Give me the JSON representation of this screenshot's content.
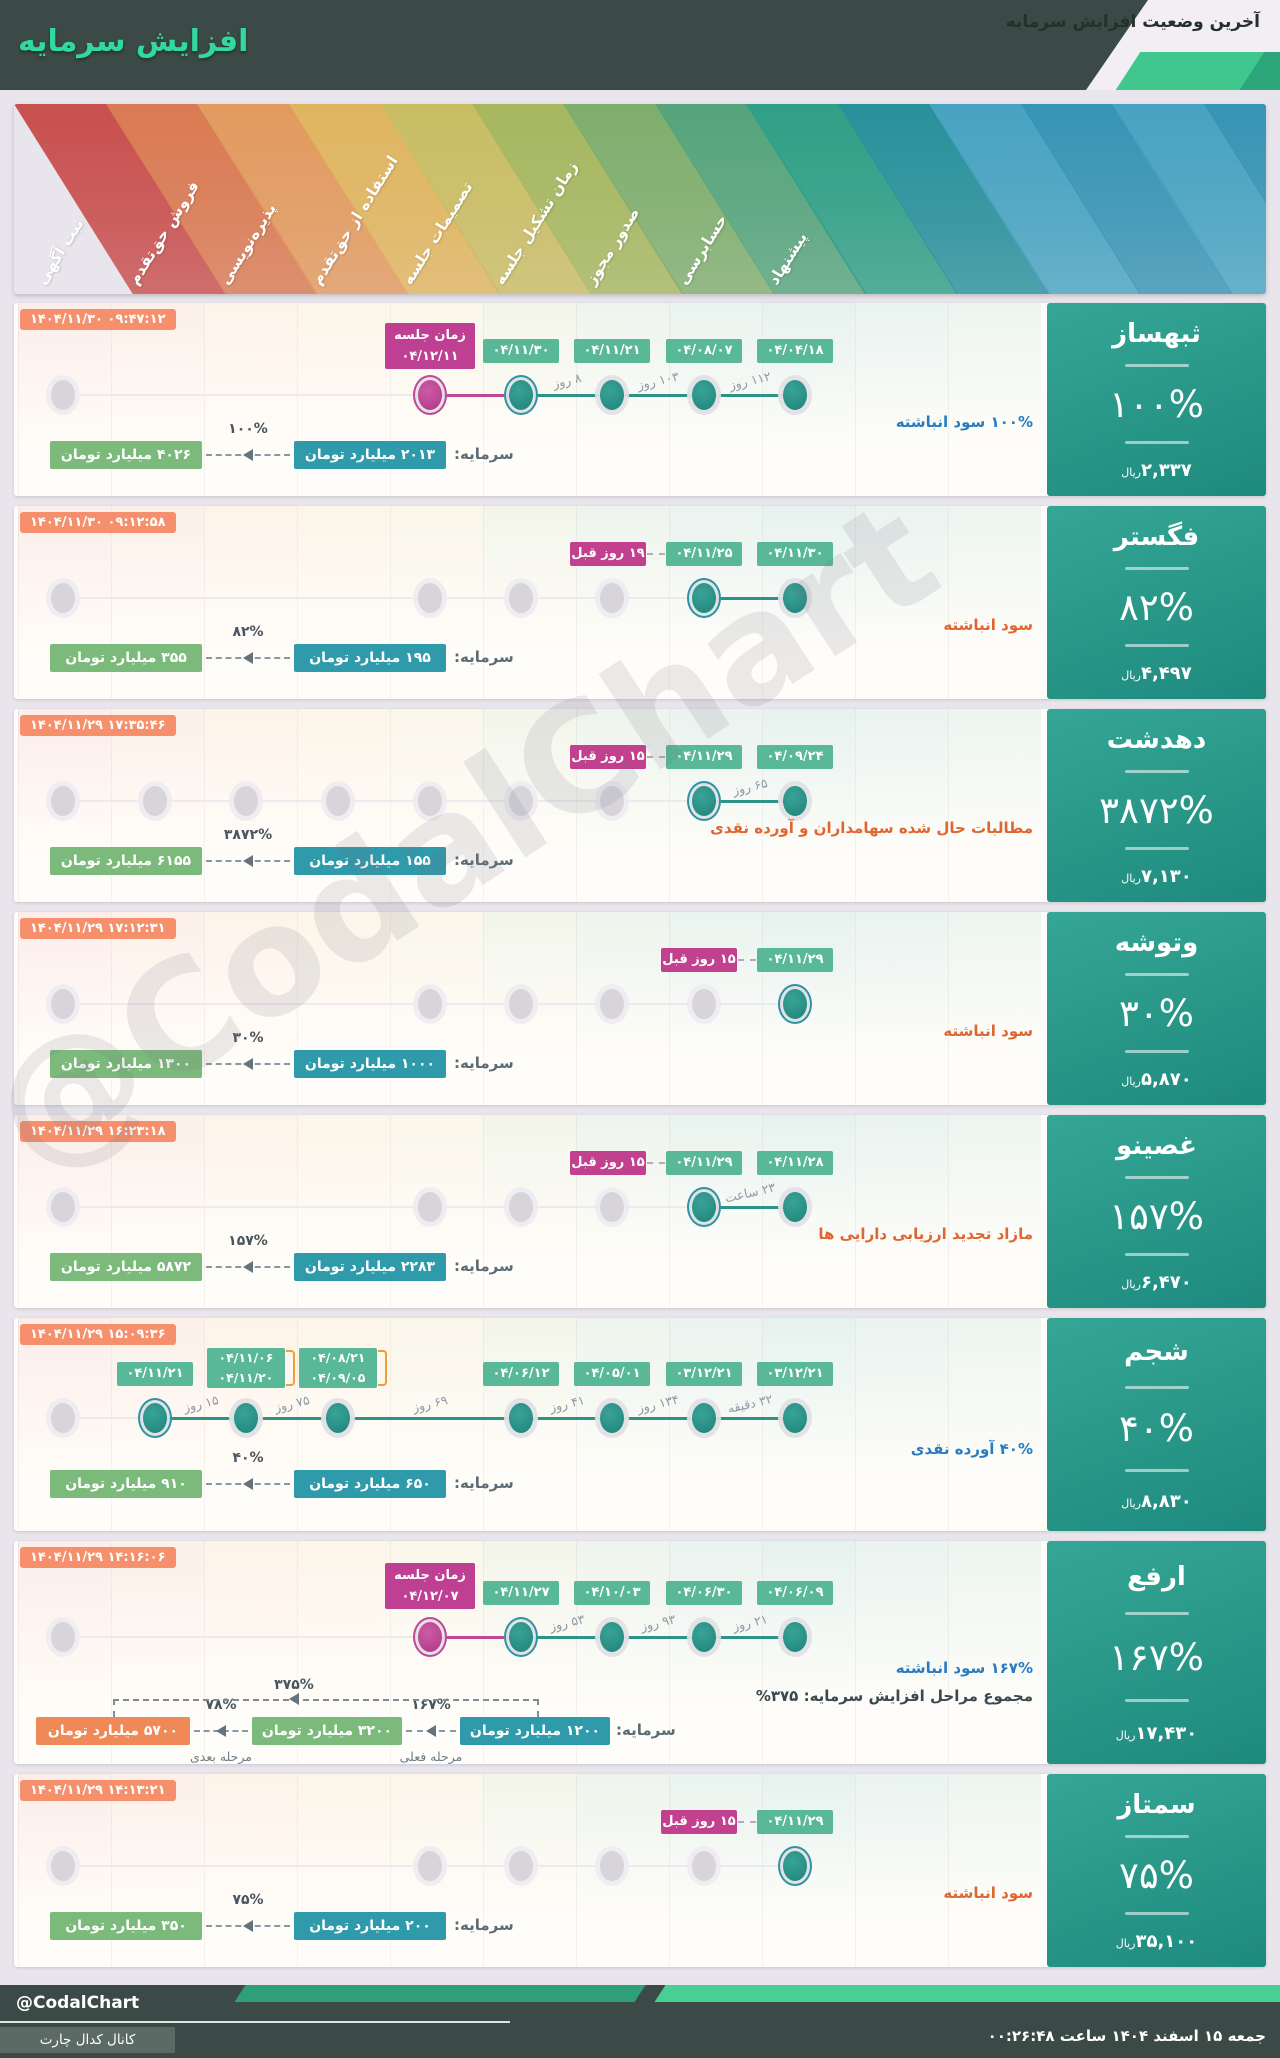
{
  "header": {
    "title": "افزایش سرمایه",
    "subtitle": "آخرین وضعیت افزایش سرمایه"
  },
  "banner": {
    "stages": [
      "ثبت آگهی",
      "فروش حق‌تقدم",
      "پذیره‌نویسی",
      "استفاده از حق‌تقدم",
      "تصمیمات جلسه",
      "زمان تشکیل جلسه",
      "صدور مجوز",
      "حسابرسی",
      "پیشنهاد"
    ],
    "stage_colors": [
      "#c8504e",
      "#d97a52",
      "#e29a5e",
      "#e0b55f",
      "#c9bd63",
      "#a6b75f",
      "#7fae6d",
      "#55a47b",
      "#2f9f86",
      "#28909b",
      "#47a3c1",
      "#3794b4",
      "#47a3c1",
      "#3794b4"
    ]
  },
  "colors": {
    "accent_teal": "#2f9f86",
    "badge_teal": "#58b898",
    "badge_magenta": "#bf3f92",
    "badge_orange_ts": "#f6906c",
    "chain_teal": "#2f9aaa",
    "chain_green": "#7cba7c",
    "chain_orange": "#ef8a58",
    "note_blue": "#2a7cc0",
    "note_orange": "#e0662f",
    "card_gradient": "#35a695",
    "header_dark": "#3b4a46",
    "mint": "#3fc78e"
  },
  "rows": [
    {
      "name": "ثبهساز",
      "pct": "۱۰۰%",
      "price": "۲,۳۳۷",
      "rial": "ریال",
      "timestamp": "۱۴۰۴/۱۱/۳۰ ۰۹:۴۷:۱۲",
      "badges": [
        {
          "col": 5,
          "type": "magenta",
          "lines": [
            "زمان جلسه",
            "۰۴/۱۲/۱۱"
          ]
        },
        {
          "col": 6,
          "text": "۰۴/۱۱/۳۰"
        },
        {
          "col": 7,
          "text": "۰۴/۱۱/۲۱"
        },
        {
          "col": 8,
          "text": "۰۴/۰۸/۰۷"
        },
        {
          "col": 9,
          "text": "۰۴/۰۴/۱۸"
        }
      ],
      "prev": null,
      "dots": [
        {
          "col": 1,
          "kind": "gray"
        },
        {
          "col": 5,
          "kind": "magenta",
          "ring": true
        },
        {
          "col": 6,
          "kind": "teal",
          "ring": true
        },
        {
          "col": 7,
          "kind": "teal"
        },
        {
          "col": 8,
          "kind": "teal"
        },
        {
          "col": 9,
          "kind": "teal"
        }
      ],
      "segments": [
        {
          "from": 5,
          "to": 6,
          "color": "#c14697"
        },
        {
          "from": 6,
          "to": 9,
          "color": "#2e9387"
        }
      ],
      "gaps": [
        {
          "between": [
            6,
            7
          ],
          "text": "۸ روز"
        },
        {
          "between": [
            7,
            8
          ],
          "text": "۱۰۳ روز"
        },
        {
          "between": [
            8,
            9
          ],
          "text": "۱۱۲ روز"
        }
      ],
      "notes": [
        {
          "text": "۱۰۰% سود انباشته",
          "tone": "blue"
        }
      ],
      "chain": {
        "label": "سرمایه:",
        "start": "۲۰۱۳ میلیارد تومان",
        "hops": [
          {
            "pct": "۱۰۰%",
            "text": "۴۰۲۶ میلیارد تومان",
            "tone": "green"
          }
        ]
      }
    },
    {
      "name": "فگستر",
      "pct": "۸۲%",
      "price": "۴,۴۹۷",
      "rial": "ریال",
      "timestamp": "۱۴۰۴/۱۱/۳۰ ۰۹:۱۲:۵۸",
      "badges": [
        {
          "col": 8,
          "text": "۰۴/۱۱/۲۵"
        },
        {
          "col": 9,
          "text": "۰۴/۱۱/۳۰"
        }
      ],
      "prev": {
        "text": "۱۹ روز قبل",
        "col": 8
      },
      "dots": [
        {
          "col": 1,
          "kind": "gray"
        },
        {
          "col": 5,
          "kind": "gray"
        },
        {
          "col": 6,
          "kind": "gray"
        },
        {
          "col": 7,
          "kind": "gray"
        },
        {
          "col": 8,
          "kind": "teal",
          "ring": true
        },
        {
          "col": 9,
          "kind": "teal"
        }
      ],
      "segments": [
        {
          "from": 8,
          "to": 9,
          "color": "#2e9387"
        }
      ],
      "gaps": [],
      "notes": [
        {
          "text": "سود انباشته",
          "tone": "orange"
        }
      ],
      "chain": {
        "label": "سرمایه:",
        "start": "۱۹۵ میلیارد تومان",
        "hops": [
          {
            "pct": "۸۲%",
            "text": "۳۵۵ میلیارد تومان",
            "tone": "green"
          }
        ]
      }
    },
    {
      "name": "دهدشت",
      "pct": "۳۸۷۲%",
      "price": "۷,۱۳۰",
      "rial": "ریال",
      "timestamp": "۱۴۰۴/۱۱/۲۹ ۱۷:۳۵:۴۶",
      "badges": [
        {
          "col": 8,
          "text": "۰۴/۱۱/۲۹"
        },
        {
          "col": 9,
          "text": "۰۴/۰۹/۲۴"
        }
      ],
      "prev": {
        "text": "۱۵ روز قبل",
        "col": 8
      },
      "dots": [
        {
          "col": 1,
          "kind": "gray"
        },
        {
          "col": 2,
          "kind": "gray"
        },
        {
          "col": 3,
          "kind": "gray"
        },
        {
          "col": 4,
          "kind": "gray"
        },
        {
          "col": 5,
          "kind": "gray"
        },
        {
          "col": 6,
          "kind": "gray"
        },
        {
          "col": 7,
          "kind": "gray"
        },
        {
          "col": 8,
          "kind": "teal",
          "ring": true
        },
        {
          "col": 9,
          "kind": "teal"
        }
      ],
      "segments": [
        {
          "from": 8,
          "to": 9,
          "color": "#2e9387"
        }
      ],
      "gaps": [
        {
          "between": [
            8,
            9
          ],
          "text": "۶۵ روز"
        }
      ],
      "notes": [
        {
          "text": "مطالبات حال شده سهامداران و آورده نقدی",
          "tone": "orange"
        }
      ],
      "chain": {
        "label": "سرمایه:",
        "start": "۱۵۵ میلیارد تومان",
        "hops": [
          {
            "pct": "۳۸۷۲%",
            "text": "۶۱۵۵ میلیارد تومان",
            "tone": "green"
          }
        ]
      }
    },
    {
      "name": "وتوشه",
      "pct": "۳۰%",
      "price": "۵,۸۷۰",
      "rial": "ریال",
      "timestamp": "۱۴۰۴/۱۱/۲۹ ۱۷:۱۲:۳۱",
      "badges": [
        {
          "col": 9,
          "text": "۰۴/۱۱/۲۹"
        }
      ],
      "prev": {
        "text": "۱۵ روز قبل",
        "col": 9
      },
      "dots": [
        {
          "col": 1,
          "kind": "gray"
        },
        {
          "col": 5,
          "kind": "gray"
        },
        {
          "col": 6,
          "kind": "gray"
        },
        {
          "col": 7,
          "kind": "gray"
        },
        {
          "col": 8,
          "kind": "gray"
        },
        {
          "col": 9,
          "kind": "teal",
          "ring": true
        }
      ],
      "segments": [],
      "gaps": [],
      "notes": [
        {
          "text": "سود انباشته",
          "tone": "orange"
        }
      ],
      "chain": {
        "label": "سرمایه:",
        "start": "۱۰۰۰ میلیارد تومان",
        "hops": [
          {
            "pct": "۳۰%",
            "text": "۱۳۰۰ میلیارد تومان",
            "tone": "green"
          }
        ]
      }
    },
    {
      "name": "غصینو",
      "pct": "۱۵۷%",
      "price": "۶,۴۷۰",
      "rial": "ریال",
      "timestamp": "۱۴۰۴/۱۱/۲۹ ۱۶:۲۳:۱۸",
      "badges": [
        {
          "col": 8,
          "text": "۰۴/۱۱/۲۹"
        },
        {
          "col": 9,
          "text": "۰۴/۱۱/۲۸"
        }
      ],
      "prev": {
        "text": "۱۵ روز قبل",
        "col": 8
      },
      "dots": [
        {
          "col": 1,
          "kind": "gray"
        },
        {
          "col": 5,
          "kind": "gray"
        },
        {
          "col": 6,
          "kind": "gray"
        },
        {
          "col": 7,
          "kind": "gray"
        },
        {
          "col": 8,
          "kind": "teal",
          "ring": true
        },
        {
          "col": 9,
          "kind": "teal"
        }
      ],
      "segments": [
        {
          "from": 8,
          "to": 9,
          "color": "#2e9387"
        }
      ],
      "gaps": [
        {
          "between": [
            8,
            9
          ],
          "text": "۲۳ ساعت"
        }
      ],
      "notes": [
        {
          "text": "مازاد تجدید ارزیابی دارایی ها",
          "tone": "orange"
        }
      ],
      "chain": {
        "label": "سرمایه:",
        "start": "۲۲۸۳ میلیارد تومان",
        "hops": [
          {
            "pct": "۱۵۷%",
            "text": "۵۸۷۲ میلیارد تومان",
            "tone": "green"
          }
        ]
      }
    },
    {
      "name": "شجم",
      "pct": "۴۰%",
      "price": "۸,۸۳۰",
      "rial": "ریال",
      "timestamp": "۱۴۰۴/۱۱/۲۹ ۱۵:۰۹:۳۶",
      "badges": [
        {
          "col": 2,
          "text": "۰۴/۱۱/۲۱"
        },
        {
          "col": 3,
          "type": "stack",
          "lines": [
            "۰۴/۱۱/۰۶",
            "۰۴/۱۱/۲۰"
          ],
          "bracket": true
        },
        {
          "col": 4,
          "type": "stack",
          "lines": [
            "۰۴/۰۸/۲۱",
            "۰۴/۰۹/۰۵"
          ],
          "bracket": true
        },
        {
          "col": 6,
          "text": "۰۴/۰۶/۱۲"
        },
        {
          "col": 7,
          "text": "۰۴/۰۵/۰۱"
        },
        {
          "col": 8,
          "text": "۰۳/۱۲/۲۱"
        },
        {
          "col": 9,
          "text": "۰۳/۱۲/۲۱"
        }
      ],
      "prev": null,
      "dots": [
        {
          "col": 1,
          "kind": "gray"
        },
        {
          "col": 2,
          "kind": "teal",
          "ring": true
        },
        {
          "col": 3,
          "kind": "teal"
        },
        {
          "col": 4,
          "kind": "teal"
        },
        {
          "col": 6,
          "kind": "teal"
        },
        {
          "col": 7,
          "kind": "teal"
        },
        {
          "col": 8,
          "kind": "teal"
        },
        {
          "col": 9,
          "kind": "teal"
        }
      ],
      "segments": [
        {
          "from": 2,
          "to": 9,
          "color": "#2e9387"
        }
      ],
      "gaps": [
        {
          "between": [
            2,
            3
          ],
          "text": "۱۵ روز"
        },
        {
          "between": [
            3,
            4
          ],
          "text": "۷۵ روز"
        },
        {
          "between": [
            4,
            6
          ],
          "text": "۶۹ روز"
        },
        {
          "between": [
            6,
            7
          ],
          "text": "۴۱ روز"
        },
        {
          "between": [
            7,
            8
          ],
          "text": "۱۳۴ روز"
        },
        {
          "between": [
            8,
            9
          ],
          "text": "۳۲ دقیقه"
        }
      ],
      "notes": [
        {
          "text": "۴۰% آورده نقدی",
          "tone": "blue"
        }
      ],
      "chain": {
        "label": "سرمایه:",
        "start": "۶۵۰ میلیارد تومان",
        "hops": [
          {
            "pct": "۴۰%",
            "text": "۹۱۰ میلیارد تومان",
            "tone": "green"
          }
        ]
      }
    },
    {
      "name": "ارفع",
      "pct": "۱۶۷%",
      "price": "۱۷,۴۳۰",
      "rial": "ریال",
      "timestamp": "۱۴۰۴/۱۱/۲۹ ۱۴:۱۶:۰۶",
      "badges": [
        {
          "col": 5,
          "type": "magenta",
          "lines": [
            "زمان جلسه",
            "۰۴/۱۲/۰۷"
          ]
        },
        {
          "col": 6,
          "text": "۰۴/۱۱/۲۷"
        },
        {
          "col": 7,
          "text": "۰۴/۱۰/۰۳"
        },
        {
          "col": 8,
          "text": "۰۴/۰۶/۳۰"
        },
        {
          "col": 9,
          "text": "۰۴/۰۶/۰۹"
        }
      ],
      "prev": null,
      "dots": [
        {
          "col": 1,
          "kind": "gray"
        },
        {
          "col": 5,
          "kind": "magenta",
          "ring": true
        },
        {
          "col": 6,
          "kind": "teal",
          "ring": true
        },
        {
          "col": 7,
          "kind": "teal"
        },
        {
          "col": 8,
          "kind": "teal"
        },
        {
          "col": 9,
          "kind": "teal"
        }
      ],
      "segments": [
        {
          "from": 5,
          "to": 6,
          "color": "#c14697"
        },
        {
          "from": 6,
          "to": 9,
          "color": "#2e9387"
        }
      ],
      "gaps": [
        {
          "between": [
            6,
            7
          ],
          "text": "۵۳ روز"
        },
        {
          "between": [
            7,
            8
          ],
          "text": "۹۳ روز"
        },
        {
          "between": [
            8,
            9
          ],
          "text": "۲۱ روز"
        }
      ],
      "notes": [
        {
          "text": "۱۶۷% سود انباشته",
          "tone": "blue"
        },
        {
          "text": "مجموع مراحل افزایش سرمایه: ۳۷۵%",
          "tone": "dark"
        }
      ],
      "chain": {
        "label": "سرمایه:",
        "start": "۱۲۰۰ میلیارد تومان",
        "hops": [
          {
            "pct": "۱۶۷%",
            "text": "۳۲۰۰ میلیارد تومان",
            "tone": "green",
            "caption": "مرحله فعلی"
          },
          {
            "pct": "۷۸%",
            "text": "۵۷۰۰ میلیارد تومان",
            "tone": "orange",
            "caption": "مرحله بعدی"
          }
        ],
        "overhead_pct": "۳۷۵%"
      }
    },
    {
      "name": "سمتاز",
      "pct": "۷۵%",
      "price": "۳۵,۱۰۰",
      "rial": "ریال",
      "timestamp": "۱۴۰۴/۱۱/۲۹ ۱۴:۱۳:۲۱",
      "badges": [
        {
          "col": 9,
          "text": "۰۴/۱۱/۲۹"
        }
      ],
      "prev": {
        "text": "۱۵ روز قبل",
        "col": 9
      },
      "dots": [
        {
          "col": 1,
          "kind": "gray"
        },
        {
          "col": 5,
          "kind": "gray"
        },
        {
          "col": 6,
          "kind": "gray"
        },
        {
          "col": 7,
          "kind": "gray"
        },
        {
          "col": 8,
          "kind": "gray"
        },
        {
          "col": 9,
          "kind": "teal",
          "ring": true
        }
      ],
      "segments": [],
      "gaps": [],
      "notes": [
        {
          "text": "سود انباشته",
          "tone": "orange"
        }
      ],
      "chain": {
        "label": "سرمایه:",
        "start": "۲۰۰ میلیارد تومان",
        "hops": [
          {
            "pct": "۷۵%",
            "text": "۳۵۰ میلیارد تومان",
            "tone": "green"
          }
        ]
      }
    }
  ],
  "footer": {
    "brand": "@CodalChart",
    "channel": "کانال کدال چارت",
    "datetime": "جمعه ۱۵ اسفند ۱۴۰۴ ساعت ۰۰:۲۶:۴۸"
  },
  "watermark": "@CodalChart"
}
